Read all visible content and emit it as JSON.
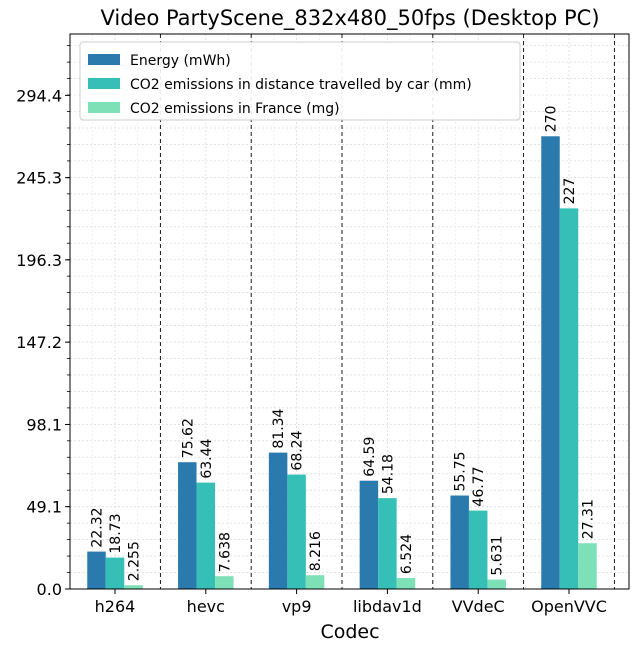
{
  "chart_data": {
    "type": "bar",
    "title": "Video PartyScene_832x480_50fps (Desktop PC)",
    "xlabel": "Codec",
    "ylabel": "",
    "categories": [
      "h264",
      "hevc",
      "vp9",
      "libdav1d",
      "VVdeC",
      "OpenVVC"
    ],
    "series": [
      {
        "name": "Energy (mWh)",
        "color": "#2a7aad",
        "values": [
          22.32,
          75.62,
          81.34,
          64.59,
          55.75,
          270
        ],
        "labels": [
          "22.32",
          "75.62",
          "81.34",
          "64.59",
          "55.75",
          "270"
        ]
      },
      {
        "name": "CO2 emissions in distance travelled by car (mm)",
        "color": "#35bfb6",
        "values": [
          18.73,
          63.44,
          68.24,
          54.18,
          46.77,
          227
        ],
        "labels": [
          "18.73",
          "63.44",
          "68.24",
          "54.18",
          "46.77",
          "227"
        ]
      },
      {
        "name": "CO2 emissions in France (mg)",
        "color": "#7de0b6",
        "values": [
          2.255,
          7.638,
          8.216,
          6.524,
          5.631,
          27.31
        ],
        "labels": [
          "2.255",
          "7.638",
          "8.216",
          "6.524",
          "5.631",
          "27.31"
        ]
      }
    ],
    "yticks": [
      0.0,
      49.1,
      98.1,
      147.2,
      196.3,
      245.3,
      294.4
    ],
    "ytick_labels": [
      "0.0",
      "49.1",
      "98.1",
      "147.2",
      "196.3",
      "245.3",
      "294.4"
    ],
    "ylim": [
      0,
      331
    ],
    "grid": true,
    "legend_position": "top-left"
  }
}
